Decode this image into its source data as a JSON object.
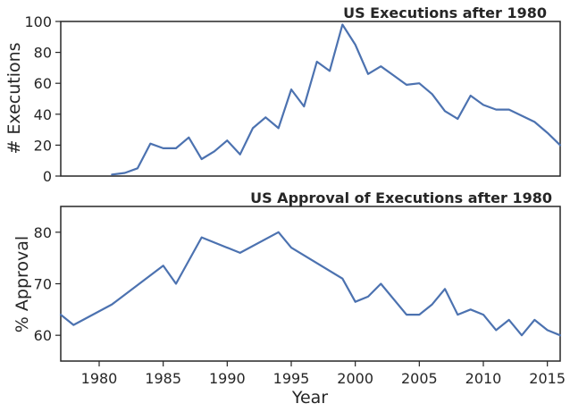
{
  "colors": {
    "series": "#4c72b0",
    "axis": "#262626",
    "background": "#ffffff"
  },
  "chart_data": [
    {
      "type": "line",
      "title": "US Executions after 1980",
      "xlabel": "",
      "ylabel": "# Executions",
      "xlim": [
        1977,
        2016
      ],
      "ylim": [
        0,
        100
      ],
      "yticks": [
        0,
        20,
        40,
        60,
        80,
        100
      ],
      "xticks_shown": false,
      "grid": false,
      "series": [
        {
          "x": [
            1981,
            1982,
            1983,
            1984,
            1985,
            1986,
            1987,
            1988,
            1989,
            1990,
            1991,
            1992,
            1993,
            1994,
            1995,
            1996,
            1997,
            1998,
            1999,
            2000,
            2001,
            2002,
            2003,
            2004,
            2005,
            2006,
            2007,
            2008,
            2009,
            2010,
            2011,
            2012,
            2013,
            2014,
            2015,
            2016
          ],
          "y": [
            1,
            2,
            5,
            21,
            18,
            18,
            25,
            11,
            16,
            23,
            14,
            31,
            38,
            31,
            56,
            45,
            74,
            68,
            98,
            85,
            66,
            71,
            65,
            59,
            60,
            53,
            42,
            37,
            52,
            46,
            43,
            43,
            39,
            35,
            28,
            20
          ]
        }
      ]
    },
    {
      "type": "line",
      "title": "US Approval of Executions after 1980",
      "xlabel": "Year",
      "ylabel": "% Approval",
      "xlim": [
        1977,
        2016
      ],
      "ylim": [
        55,
        85
      ],
      "yticks": [
        60,
        70,
        80
      ],
      "xticks": [
        1980,
        1985,
        1990,
        1995,
        2000,
        2005,
        2010,
        2015
      ],
      "grid": false,
      "series": [
        {
          "x": [
            1977,
            1978,
            1981,
            1985,
            1986,
            1988,
            1991,
            1994,
            1995,
            1999,
            2000,
            2001,
            2002,
            2004,
            2005,
            2006,
            2007,
            2008,
            2009,
            2010,
            2011,
            2012,
            2013,
            2014,
            2015,
            2016
          ],
          "y": [
            64,
            62,
            66,
            73.5,
            70,
            79,
            76,
            80,
            77,
            71,
            66.5,
            67.5,
            70,
            64,
            64,
            66,
            69,
            64,
            65,
            64,
            61,
            63,
            60,
            63,
            61,
            60
          ]
        }
      ]
    }
  ]
}
